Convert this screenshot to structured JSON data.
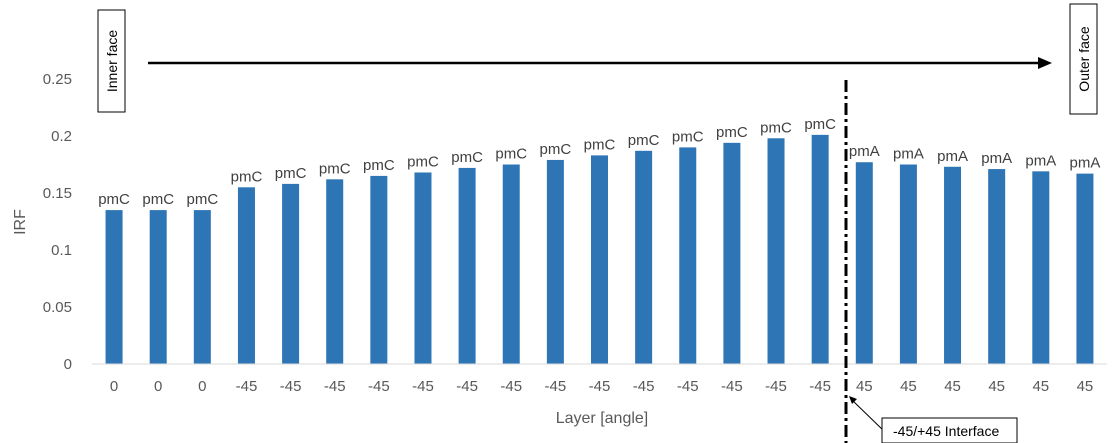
{
  "chart_data": {
    "type": "bar",
    "title": "",
    "xlabel": "Layer [angle]",
    "ylabel": "IRF",
    "ylim": [
      0,
      0.25
    ],
    "yticks": [
      "0",
      "0.05",
      "0.1",
      "0.15",
      "0.2",
      "0.25"
    ],
    "grid": false,
    "bar_color": "#2e75b6",
    "categories": [
      "0",
      "0",
      "0",
      "-45",
      "-45",
      "-45",
      "-45",
      "-45",
      "-45",
      "-45",
      "-45",
      "-45",
      "-45",
      "-45",
      "-45",
      "-45",
      "-45",
      "45",
      "45",
      "45",
      "45",
      "45",
      "45"
    ],
    "values": [
      0.135,
      0.135,
      0.135,
      0.155,
      0.158,
      0.162,
      0.165,
      0.168,
      0.172,
      0.175,
      0.179,
      0.183,
      0.187,
      0.19,
      0.194,
      0.198,
      0.201,
      0.177,
      0.175,
      0.173,
      0.171,
      0.169,
      0.167
    ],
    "data_labels": [
      "pmC",
      "pmC",
      "pmC",
      "pmC",
      "pmC",
      "pmC",
      "pmC",
      "pmC",
      "pmC",
      "pmC",
      "pmC",
      "pmC",
      "pmC",
      "pmC",
      "pmC",
      "pmC",
      "pmC",
      "pmA",
      "pmA",
      "pmA",
      "pmA",
      "pmA",
      "pmA"
    ],
    "annotations": {
      "inner_face": "Inner face",
      "outer_face": "Outer face",
      "interface": "-45/+45 Interface"
    }
  }
}
